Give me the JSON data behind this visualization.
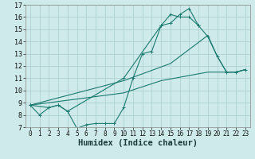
{
  "xlabel": "Humidex (Indice chaleur)",
  "bg_color": "#ceeaea",
  "grid_color": "#aacccc",
  "line_color": "#1a7a6e",
  "xlim": [
    -0.5,
    23.5
  ],
  "ylim": [
    7,
    17
  ],
  "xticks": [
    0,
    1,
    2,
    3,
    4,
    5,
    6,
    7,
    8,
    9,
    10,
    11,
    12,
    13,
    14,
    15,
    16,
    17,
    18,
    19,
    20,
    21,
    22,
    23
  ],
  "yticks": [
    7,
    8,
    9,
    10,
    11,
    12,
    13,
    14,
    15,
    16,
    17
  ],
  "line1_x": [
    0,
    1,
    2,
    3,
    4,
    5,
    6,
    7,
    8,
    9,
    10,
    11,
    12,
    13,
    14,
    15,
    16,
    17,
    18
  ],
  "line1_y": [
    8.8,
    8.0,
    8.6,
    8.8,
    8.3,
    6.9,
    7.2,
    7.3,
    7.3,
    7.3,
    8.6,
    11.0,
    13.0,
    13.2,
    15.3,
    15.5,
    16.2,
    16.7,
    15.3
  ],
  "line2_x": [
    0,
    2,
    3,
    4,
    10,
    14,
    15,
    16,
    17,
    18,
    19,
    20,
    21,
    22,
    23
  ],
  "line2_y": [
    8.8,
    8.6,
    8.8,
    8.3,
    11.0,
    15.3,
    16.2,
    16.0,
    16.0,
    15.3,
    14.4,
    12.8,
    11.5,
    11.5,
    11.7
  ],
  "line3_x": [
    0,
    10,
    15,
    19,
    20,
    21,
    22,
    23
  ],
  "line3_y": [
    8.8,
    10.8,
    12.2,
    14.5,
    12.8,
    11.5,
    11.5,
    11.7
  ],
  "line4_x": [
    0,
    10,
    14,
    19,
    22,
    23
  ],
  "line4_y": [
    8.8,
    9.8,
    10.8,
    11.5,
    11.5,
    11.7
  ],
  "tick_fontsize": 5.5,
  "xlabel_fontsize": 7.5
}
